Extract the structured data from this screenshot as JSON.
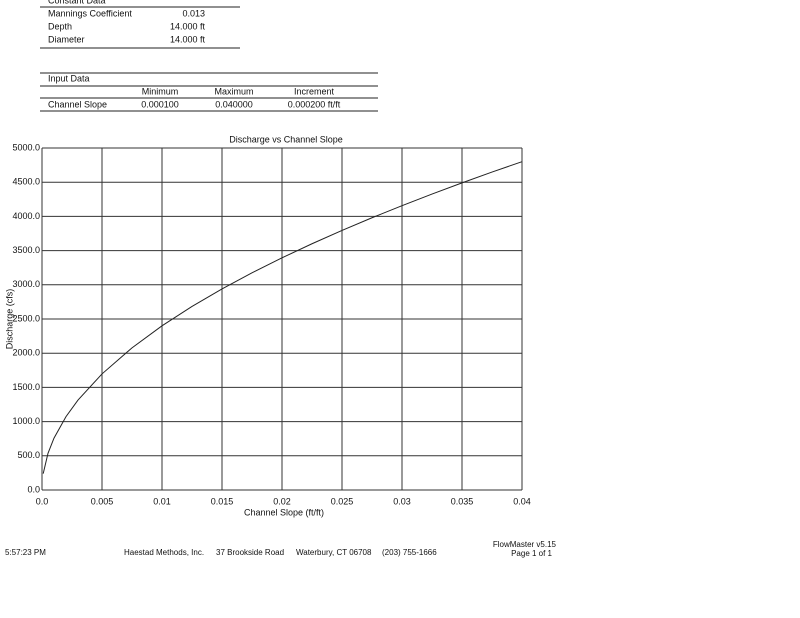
{
  "constant_data": {
    "title": "Constant Data",
    "rows": [
      [
        "Mannings Coefficient",
        "0.013"
      ],
      [
        "Depth",
        "14.000 ft"
      ],
      [
        "Diameter",
        "14.000 ft"
      ]
    ]
  },
  "input_data": {
    "title": "Input Data",
    "header": [
      "Minimum",
      "Maximum",
      "Increment"
    ],
    "rows": [
      [
        "Channel Slope",
        "0.000100",
        "0.040000",
        "0.000200 ft/ft"
      ]
    ]
  },
  "chart_data": {
    "type": "line",
    "title": "Discharge vs Channel Slope",
    "x_label": "Channel Slope (ft/ft)",
    "y_label": "Discharge (cfs)",
    "x": [
      0.0001,
      0.0005,
      0.001,
      0.002,
      0.003,
      0.005,
      0.0075,
      0.01,
      0.0125,
      0.015,
      0.0175,
      0.02,
      0.0225,
      0.025,
      0.0275,
      0.03,
      0.0325,
      0.035,
      0.0375,
      0.04
    ],
    "values": [
      240,
      537,
      759,
      1073,
      1315,
      1697,
      2078,
      2400,
      2683,
      2939,
      3175,
      3394,
      3600,
      3795,
      3980,
      4157,
      4327,
      4490,
      4648,
      4800
    ],
    "color": "#222222",
    "xlim": [
      0,
      0.04
    ],
    "ylim": [
      0,
      5000
    ],
    "xticks": [
      {
        "value": 0,
        "label": "0.0"
      },
      0.005,
      0.01,
      0.015,
      0.02,
      0.025,
      0.03,
      0.035,
      0.04
    ],
    "yticks": [
      {
        "value": 0,
        "label": "0.0"
      },
      {
        "value": 500,
        "label": "500.0"
      },
      {
        "value": 1000,
        "label": "1000.0"
      },
      {
        "value": 1500,
        "label": "1500.0"
      },
      {
        "value": 2000,
        "label": "2000.0"
      },
      {
        "value": 2500,
        "label": "2500.0"
      },
      {
        "value": 3000,
        "label": "3000.0"
      },
      {
        "value": 3500,
        "label": "3500.0"
      },
      {
        "value": 4000,
        "label": "4000.0"
      },
      {
        "value": 4500,
        "label": "4500.0"
      },
      {
        "value": 5000,
        "label": "5000.0"
      }
    ],
    "grid": true
  },
  "footer": {
    "time": "5:57:23 PM",
    "company": "Haestad Methods, Inc.",
    "address": "37 Brookside Road",
    "city": "Waterbury, CT 06708",
    "phone": "(203) 755-1666",
    "product": "FlowMaster v5.15",
    "page": "Page 1 of 1"
  }
}
